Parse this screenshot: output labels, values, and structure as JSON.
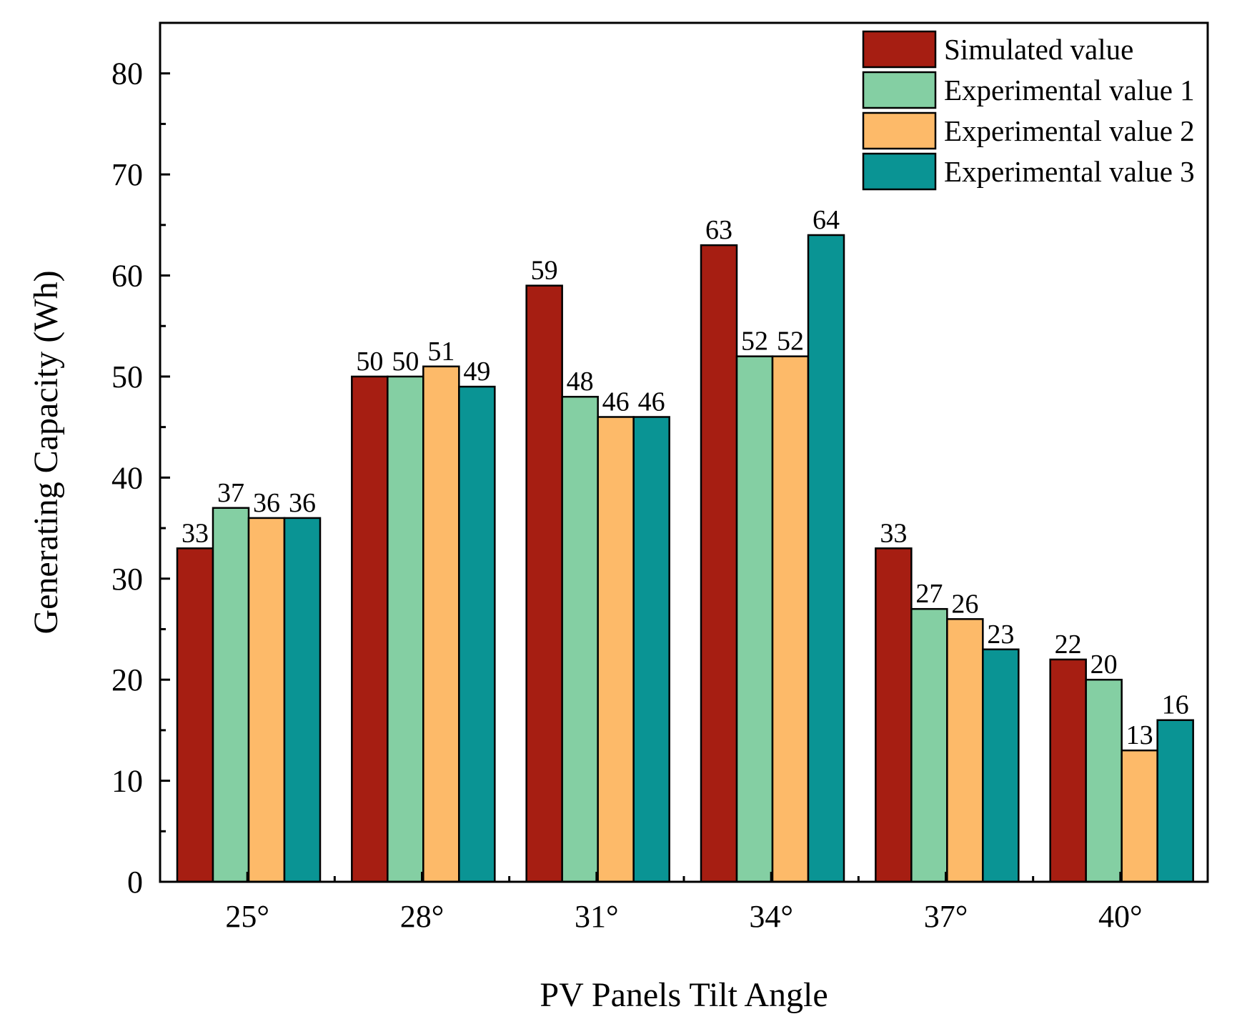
{
  "chart_data": {
    "type": "bar",
    "title": "",
    "xlabel": "PV Panels Tilt Angle",
    "ylabel": "Generating Capacity (Wh)",
    "ylim": [
      0,
      85
    ],
    "yticks": [
      0,
      10,
      20,
      30,
      40,
      50,
      60,
      70,
      80
    ],
    "y_minor_step": 5,
    "grid": false,
    "legend_position": "top-right",
    "categories": [
      "25°",
      "28°",
      "31°",
      "34°",
      "37°",
      "40°"
    ],
    "series": [
      {
        "name": "Simulated value",
        "color": "#A61E12",
        "values": [
          33,
          50,
          59,
          63,
          33,
          22
        ]
      },
      {
        "name": "Experimental value 1",
        "color": "#84CFA3",
        "values": [
          37,
          50,
          48,
          52,
          27,
          20
        ]
      },
      {
        "name": "Experimental value 2",
        "color": "#FDBA69",
        "values": [
          36,
          51,
          46,
          52,
          26,
          13
        ]
      },
      {
        "name": "Experimental value 3",
        "color": "#0A9494",
        "values": [
          36,
          49,
          46,
          64,
          23,
          16
        ]
      }
    ]
  }
}
